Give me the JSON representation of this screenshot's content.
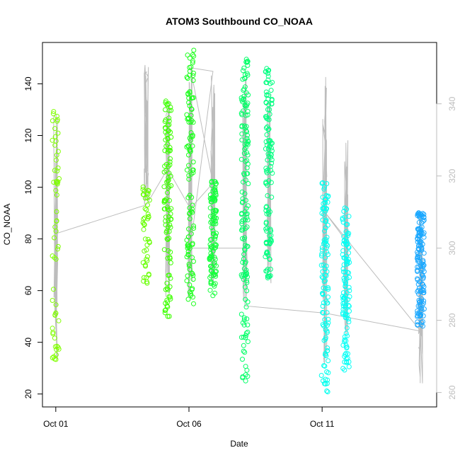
{
  "chart_data": {
    "type": "scatter",
    "title": "ATOM3 Southbound CO_NOAA",
    "xlabel": "Date",
    "ylabel": "CO_NOAA",
    "x_ticks": [
      "Oct 01",
      "Oct 06",
      "Oct 11"
    ],
    "x_tick_days": [
      1,
      6,
      11
    ],
    "xlim_days": [
      0.5,
      15.3
    ],
    "ylim": [
      15,
      156
    ],
    "y_ticks": [
      20,
      40,
      60,
      80,
      100,
      120,
      140
    ],
    "y2_ticks": [
      260,
      280,
      300,
      320,
      340
    ],
    "y2lim": [
      256,
      357
    ],
    "grid": false,
    "legend": "none",
    "colors": {
      "line": "#bdbdbd",
      "right_axis": "#bdbdbd"
    },
    "groups": [
      {
        "day": 1.0,
        "ymin": 33,
        "ymax": 131,
        "color": "#80ff00",
        "n": 60
      },
      {
        "day": 4.4,
        "ymin": 59,
        "ymax": 102,
        "color": "#66ff00",
        "n": 45
      },
      {
        "day": 5.2,
        "ymin": 50,
        "ymax": 134,
        "color": "#3dff00",
        "n": 110
      },
      {
        "day": 6.05,
        "ymin": 54,
        "ymax": 153,
        "color": "#1aff1a",
        "n": 110
      },
      {
        "day": 6.9,
        "ymin": 58,
        "ymax": 103,
        "color": "#14ff3a",
        "n": 110
      },
      {
        "day": 8.1,
        "ymin": 25,
        "ymax": 150,
        "color": "#00ff66",
        "n": 150
      },
      {
        "day": 9.0,
        "ymin": 63,
        "ymax": 147,
        "color": "#00ff80",
        "n": 120
      },
      {
        "day": 11.1,
        "ymin": 20,
        "ymax": 102,
        "color": "#00ffee",
        "n": 110
      },
      {
        "day": 11.9,
        "ymin": 29,
        "ymax": 92,
        "color": "#00fff5",
        "n": 110
      },
      {
        "day": 14.7,
        "ymin": 45,
        "ymax": 91,
        "color": "#1aa8ff",
        "n": 140
      }
    ],
    "line_series": {
      "name": "",
      "axis": "right",
      "points": [
        [
          1.0,
          304
        ],
        [
          4.4,
          312
        ],
        [
          5.2,
          322
        ],
        [
          6.05,
          311
        ],
        [
          6.9,
          318
        ],
        [
          6.05,
          350
        ],
        [
          6.9,
          349
        ],
        [
          6.05,
          300
        ],
        [
          8.1,
          300
        ],
        [
          8.1,
          284
        ],
        [
          11.1,
          282
        ],
        [
          14.7,
          277
        ],
        [
          11.1,
          310
        ],
        [
          11.9,
          302
        ]
      ],
      "spikes": [
        {
          "day": 1.0,
          "y2min": 265,
          "y2max": 343
        },
        {
          "day": 4.4,
          "y2min": 312,
          "y2max": 352
        },
        {
          "day": 5.2,
          "y2min": 286,
          "y2max": 341
        },
        {
          "day": 6.05,
          "y2min": 286,
          "y2max": 351
        },
        {
          "day": 6.9,
          "y2min": 289,
          "y2max": 351
        },
        {
          "day": 8.1,
          "y2min": 284,
          "y2max": 349
        },
        {
          "day": 9.0,
          "y2min": 288,
          "y2max": 349
        },
        {
          "day": 11.1,
          "y2min": 266,
          "y2max": 349
        },
        {
          "day": 11.9,
          "y2min": 276,
          "y2max": 330
        },
        {
          "day": 14.7,
          "y2min": 262,
          "y2max": 310
        }
      ]
    }
  }
}
